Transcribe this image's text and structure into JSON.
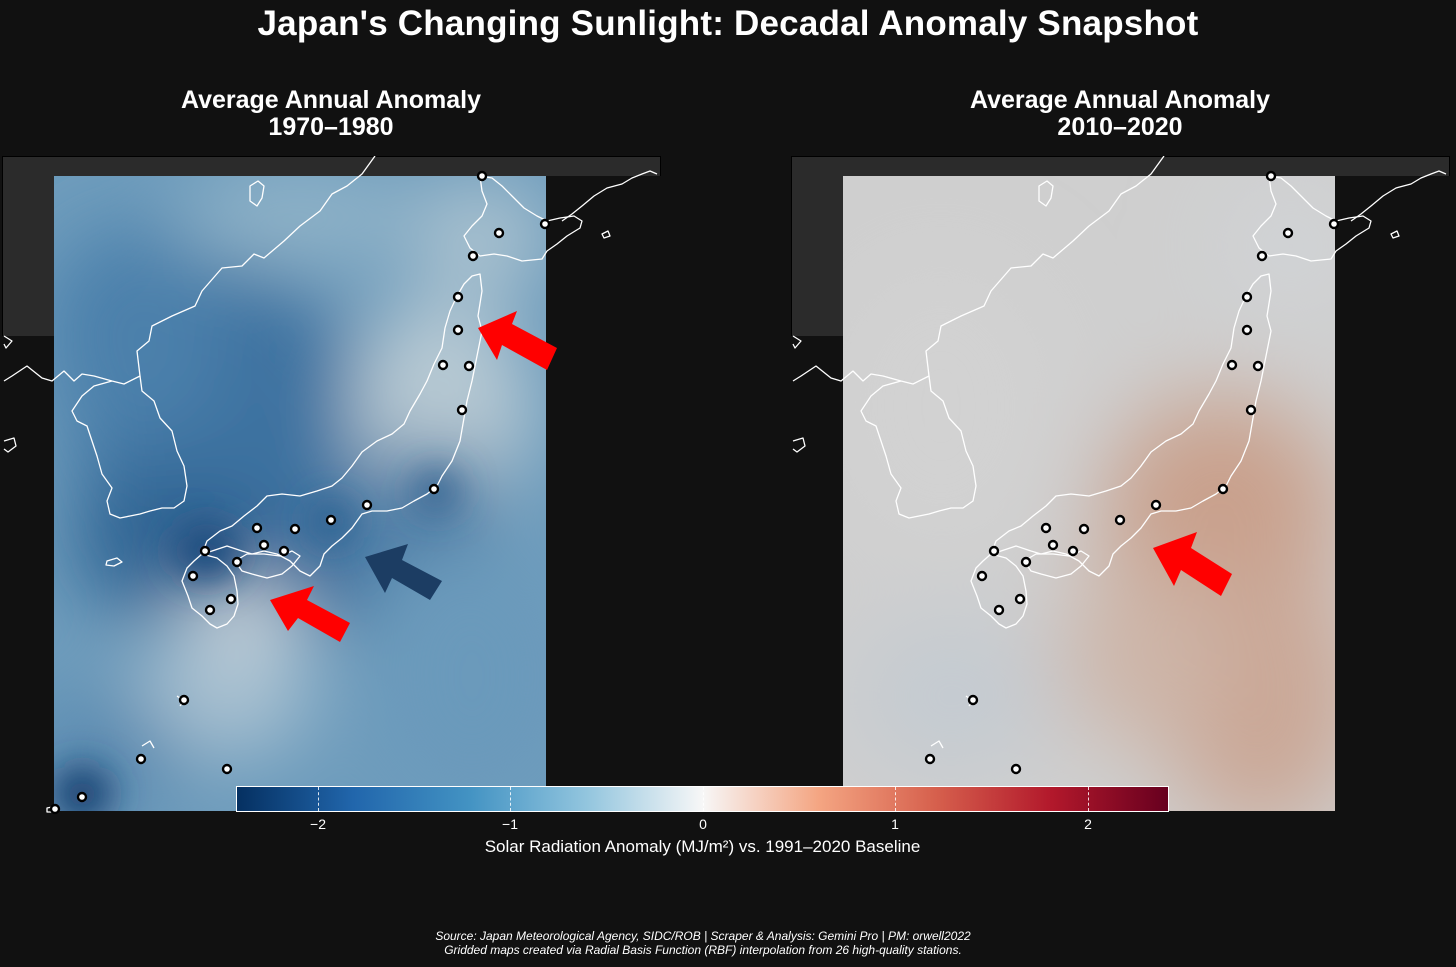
{
  "title": "Japan's Changing Sunlight: Decadal Anomaly Snapshot",
  "panels": [
    {
      "title_line1": "Average Annual Anomaly",
      "title_line2": "1970–1980"
    },
    {
      "title_line1": "Average Annual Anomaly",
      "title_line2": "2010–2020"
    }
  ],
  "colorbar": {
    "label": "Solar Radiation Anomaly (MJ/m²) vs. 1991–2020 Baseline",
    "ticks": [
      "−2",
      "−1",
      "0",
      "1",
      "2"
    ],
    "range": [
      -2.4,
      2.4
    ],
    "colormap": "RdBu_r",
    "colors": [
      "#053061",
      "#2166ac",
      "#4393c3",
      "#92c5de",
      "#f7f7f7",
      "#f4a582",
      "#d6604d",
      "#b2182b",
      "#67001f"
    ]
  },
  "source": {
    "line1": "Source: Japan Meteorological Agency, SIDC/ROB | Scraper & Analysis: Gemini Pro | PM: orwell2022",
    "line2": "Gridded maps created via Radial Basis Function (RBF) interpolation from 26 high-quality stations."
  },
  "colors": {
    "background": "#111111",
    "arrow_red": "#ff0000",
    "arrow_blue": "#1c3d63",
    "coastline": "#ffffff"
  },
  "legend": {
    "station_marker": "white-circle-marker"
  }
}
